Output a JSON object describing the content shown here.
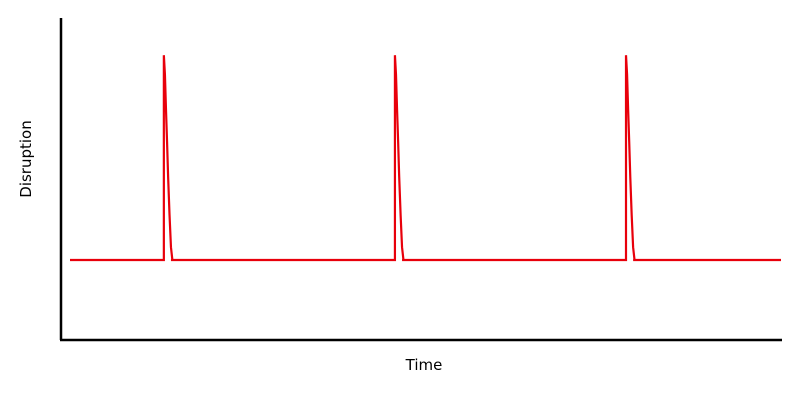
{
  "chart_data": {
    "type": "line",
    "title": "",
    "xlabel": "Time",
    "ylabel": "Disruption",
    "show_ticks": false,
    "grid": false,
    "xlim": [
      0,
      100
    ],
    "ylim": [
      0,
      10
    ],
    "series": [
      {
        "color": "#e8000b",
        "x": [
          0,
          13.2,
          13.2,
          13.35,
          13.5,
          13.65,
          13.8,
          14.0,
          14.2,
          14.4,
          14.2,
          45.7,
          45.7,
          45.85,
          46.0,
          46.15,
          46.3,
          46.5,
          46.7,
          46.9,
          46.7,
          78.2,
          78.2,
          78.35,
          78.5,
          78.65,
          78.8,
          79.0,
          79.2,
          79.4,
          79.2,
          100
        ],
        "y": [
          2.5,
          2.5,
          8.9,
          8.3,
          7.2,
          6.2,
          5.1,
          3.9,
          2.9,
          2.5,
          2.5,
          2.5,
          8.9,
          8.3,
          7.2,
          6.2,
          5.1,
          3.9,
          2.9,
          2.5,
          2.5,
          2.5,
          8.9,
          8.3,
          7.2,
          6.2,
          5.1,
          3.9,
          2.9,
          2.5,
          2.5,
          2.5
        ]
      }
    ]
  }
}
